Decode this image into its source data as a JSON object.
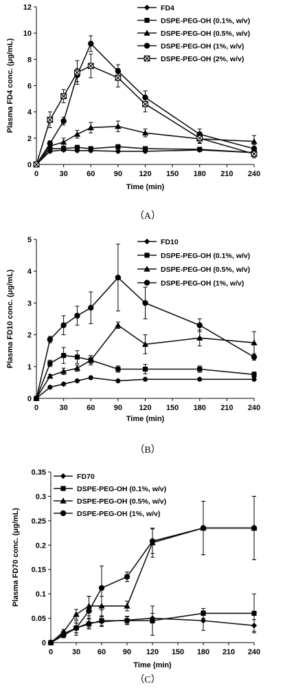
{
  "chart_data": [
    {
      "type": "line",
      "caption": "（A）",
      "xlabel": "Time (min)",
      "ylabel": "Plasma FD4 conc. (μg/mL)",
      "xlim": [
        0,
        240
      ],
      "ylim": [
        0,
        12
      ],
      "xticks": [
        0,
        30,
        60,
        90,
        120,
        150,
        180,
        210,
        240
      ],
      "yticks": [
        0,
        2,
        4,
        6,
        8,
        10,
        12
      ],
      "legend_position": "top-right",
      "series": [
        {
          "name": "FD4",
          "marker": "diamond",
          "x": [
            0,
            15,
            30,
            45,
            60,
            90,
            120,
            180,
            240
          ],
          "y": [
            0,
            1.0,
            1.1,
            1.05,
            1.05,
            1.0,
            1.0,
            1.1,
            0.9
          ],
          "err": [
            0,
            0.1,
            0.1,
            0.1,
            0.1,
            0.1,
            0.1,
            0.1,
            0.1
          ]
        },
        {
          "name": "DSPE-PEG-OH (0.1%, w/v)",
          "marker": "square",
          "x": [
            0,
            15,
            30,
            45,
            60,
            90,
            120,
            180,
            240
          ],
          "y": [
            0,
            1.2,
            1.2,
            1.3,
            1.2,
            1.35,
            1.2,
            1.15,
            0.9
          ],
          "err": [
            0,
            0.15,
            0.15,
            0.15,
            0.15,
            0.15,
            0.15,
            0.15,
            0.15
          ]
        },
        {
          "name": "DSPE-PEG-OH (0.5%, w/v)",
          "marker": "triangle",
          "x": [
            0,
            15,
            30,
            45,
            60,
            90,
            120,
            180,
            240
          ],
          "y": [
            0,
            1.4,
            1.7,
            2.3,
            2.8,
            2.9,
            2.4,
            1.95,
            1.75
          ],
          "err": [
            0,
            0.2,
            0.3,
            0.3,
            0.4,
            0.4,
            0.3,
            0.3,
            0.45
          ]
        },
        {
          "name": "DSPE-PEG-OH (1%, w/v)",
          "marker": "circle",
          "x": [
            0,
            15,
            30,
            45,
            60,
            90,
            120,
            180,
            240
          ],
          "y": [
            0,
            1.6,
            3.3,
            6.8,
            9.2,
            7.1,
            5.1,
            2.3,
            1.2
          ],
          "err": [
            0,
            0.2,
            0.3,
            0.5,
            0.6,
            0.5,
            0.5,
            0.4,
            0.3
          ]
        },
        {
          "name": "DSPE-PEG-OH (2%, w/v)",
          "marker": "asterisk",
          "x": [
            0,
            15,
            30,
            45,
            60,
            90,
            120,
            180,
            240
          ],
          "y": [
            0,
            3.4,
            5.2,
            7.0,
            7.5,
            6.6,
            4.6,
            2.0,
            0.8
          ],
          "err": [
            0,
            0.6,
            0.5,
            0.9,
            0.9,
            0.7,
            0.6,
            0.4,
            0.3
          ]
        }
      ]
    },
    {
      "type": "line",
      "caption": "（B）",
      "xlabel": "Time (min)",
      "ylabel": "Plasma FD10 conc. (μg/mL)",
      "xlim": [
        0,
        240
      ],
      "ylim": [
        0,
        5
      ],
      "xticks": [
        0,
        30,
        60,
        90,
        120,
        150,
        180,
        210,
        240
      ],
      "yticks": [
        0,
        1,
        2,
        3,
        4,
        5
      ],
      "legend_position": "top-right",
      "series": [
        {
          "name": "FD10",
          "marker": "diamond",
          "x": [
            0,
            15,
            30,
            45,
            60,
            90,
            120,
            180,
            240
          ],
          "y": [
            0,
            0.35,
            0.45,
            0.55,
            0.65,
            0.55,
            0.6,
            0.6,
            0.6
          ],
          "err": [
            0,
            0.05,
            0.05,
            0.05,
            0.05,
            0.05,
            0.05,
            0.05,
            0.05
          ]
        },
        {
          "name": "DSPE-PEG-OH (0.1%, w/v)",
          "marker": "square",
          "x": [
            0,
            15,
            30,
            45,
            60,
            90,
            120,
            180,
            240
          ],
          "y": [
            0,
            1.1,
            1.35,
            1.3,
            1.2,
            0.92,
            0.92,
            0.92,
            0.75
          ],
          "err": [
            0,
            0.1,
            0.25,
            0.2,
            0.15,
            0.1,
            0.15,
            0.1,
            0.08
          ]
        },
        {
          "name": "DSPE-PEG-OH (0.5%, w/v)",
          "marker": "triangle",
          "x": [
            0,
            15,
            30,
            45,
            60,
            90,
            120,
            180,
            240
          ],
          "y": [
            0,
            0.7,
            0.85,
            0.95,
            1.2,
            2.3,
            1.7,
            1.9,
            1.75
          ],
          "err": [
            0,
            0.05,
            0.1,
            0.1,
            0.1,
            0.1,
            0.3,
            0.25,
            0.35
          ]
        },
        {
          "name": "DSPE-PEG-OH (1%, w/v)",
          "marker": "circle",
          "x": [
            0,
            15,
            30,
            45,
            60,
            90,
            120,
            180,
            240
          ],
          "y": [
            0,
            1.85,
            2.3,
            2.6,
            2.85,
            3.8,
            3.0,
            2.3,
            1.3
          ],
          "err": [
            0,
            0.1,
            0.3,
            0.3,
            0.5,
            1.05,
            0.5,
            0.2,
            0.1
          ]
        }
      ]
    },
    {
      "type": "line",
      "caption": "（C）",
      "xlabel": "Time (min)",
      "ylabel": "Plasma FD70 conc. (μg/mL)",
      "xlim": [
        0,
        240
      ],
      "ylim": [
        0,
        0.35
      ],
      "xticks": [
        0,
        30,
        60,
        90,
        120,
        150,
        180,
        210,
        240
      ],
      "yticks": [
        "0",
        "0.05",
        "0.1",
        "0.15",
        "0.2",
        "0.25",
        "0.3",
        "0.35"
      ],
      "legend_position": "top-left",
      "series": [
        {
          "name": "FD70",
          "marker": "diamond",
          "x": [
            0,
            15,
            30,
            45,
            60,
            90,
            120,
            180,
            240
          ],
          "y": [
            0,
            0.015,
            0.03,
            0.04,
            0.043,
            0.046,
            0.05,
            0.045,
            0.035
          ],
          "err": [
            0,
            0.005,
            0.01,
            0.01,
            0.01,
            0.008,
            0.01,
            0.02,
            0.012
          ]
        },
        {
          "name": "DSPE-PEG-OH (0.1%, w/v)",
          "marker": "square",
          "x": [
            0,
            15,
            30,
            45,
            60,
            90,
            120,
            180,
            240
          ],
          "y": [
            0,
            0.018,
            0.03,
            0.038,
            0.045,
            0.045,
            0.045,
            0.06,
            0.06
          ],
          "err": [
            0,
            0.005,
            0.01,
            0.01,
            0.01,
            0.008,
            0.03,
            0.01,
            0.04
          ]
        },
        {
          "name": "DSPE-PEG-OH (0.5%, w/v)",
          "marker": "triangle",
          "x": [
            0,
            15,
            30,
            45,
            60,
            90,
            120,
            180,
            240
          ],
          "y": [
            0,
            0.022,
            0.058,
            0.075,
            0.075,
            0.075,
            0.205,
            0.235,
            0.235
          ],
          "err": [
            0,
            0.005,
            0.01,
            0.02,
            0.02,
            0.01,
            0.03,
            0.055,
            0.065
          ]
        },
        {
          "name": "DSPE-PEG-OH (1%, w/v)",
          "marker": "circle",
          "x": [
            0,
            15,
            30,
            45,
            60,
            90,
            120,
            180,
            240
          ],
          "y": [
            0,
            0.015,
            0.03,
            0.065,
            0.112,
            0.135,
            0.208,
            0.235,
            0.235
          ],
          "err": [
            0,
            0.005,
            0.015,
            0.03,
            0.045,
            0.01,
            0.025,
            0.055,
            0.065
          ]
        }
      ]
    }
  ]
}
